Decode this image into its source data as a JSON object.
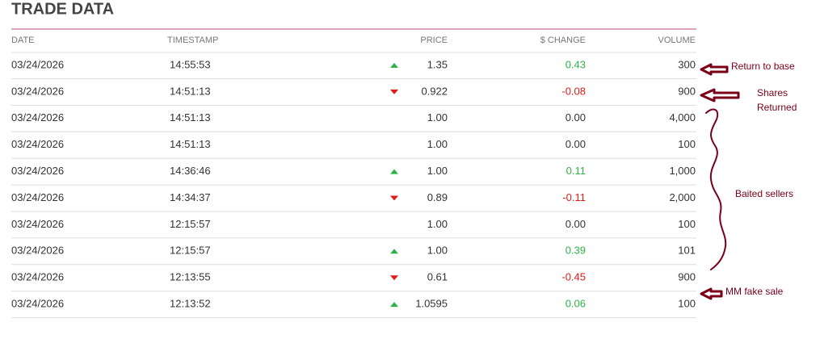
{
  "header": {
    "title": "TRADE DATA"
  },
  "table": {
    "columns": [
      "DATE",
      "TIMESTAMP",
      "PRICE",
      "$ CHANGE",
      "VOLUME"
    ],
    "rows": [
      {
        "date": "03/24/2026",
        "time": "14:55:53",
        "price": "1.35",
        "change": "0.43",
        "volume": "300",
        "trend": "up"
      },
      {
        "date": "03/24/2026",
        "time": "14:51:13",
        "price": "0.922",
        "change": "-0.08",
        "volume": "900",
        "trend": "down"
      },
      {
        "date": "03/24/2026",
        "time": "14:51:13",
        "price": "1.00",
        "change": "0.00",
        "volume": "4,000",
        "trend": null
      },
      {
        "date": "03/24/2026",
        "time": "14:51:13",
        "price": "1.00",
        "change": "0.00",
        "volume": "100",
        "trend": null
      },
      {
        "date": "03/24/2026",
        "time": "14:36:46",
        "price": "1.00",
        "change": "0.11",
        "volume": "1,000",
        "trend": "up"
      },
      {
        "date": "03/24/2026",
        "time": "14:34:37",
        "price": "0.89",
        "change": "-0.11",
        "volume": "2,000",
        "trend": "down"
      },
      {
        "date": "03/24/2026",
        "time": "12:15:57",
        "price": "1.00",
        "change": "0.00",
        "volume": "100",
        "trend": null
      },
      {
        "date": "03/24/2026",
        "time": "12:15:57",
        "price": "1.00",
        "change": "0.39",
        "volume": "101",
        "trend": "up"
      },
      {
        "date": "03/24/2026",
        "time": "12:13:55",
        "price": "0.61",
        "change": "-0.45",
        "volume": "900",
        "trend": "down"
      },
      {
        "date": "03/24/2026",
        "time": "12:13:52",
        "price": "1.0595",
        "change": "0.06",
        "volume": "100",
        "trend": "up"
      }
    ]
  },
  "annotations": {
    "return_to_base": "Return to base",
    "shares_returned": [
      "Shares",
      "Returned"
    ],
    "baited_sellers": "Baited sellers",
    "mm_fake_sale": "MM fake sale"
  }
}
